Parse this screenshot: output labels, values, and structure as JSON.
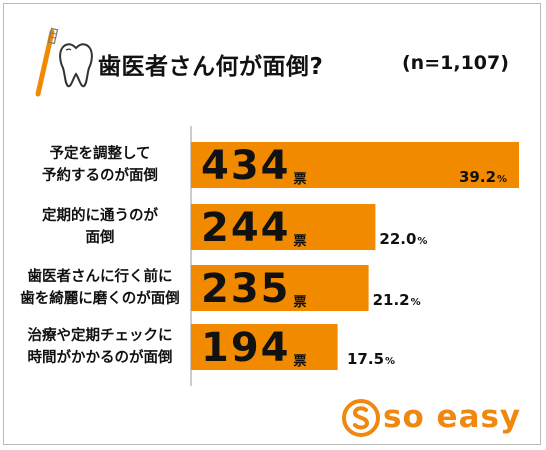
{
  "header": {
    "title": "歯医者さん何が面倒?",
    "sample": "(n=1,107)"
  },
  "colors": {
    "bar": "#f28a00",
    "logo": "#f0870f",
    "axis": "#999999"
  },
  "chart_data": {
    "type": "bar",
    "orientation": "horizontal",
    "title": "歯医者さん何が面倒?",
    "categories": [
      "予定を調整して\n予約するのが面倒",
      "定期的に通うのが\n面倒",
      "歯医者さんに行く前に\n歯を綺麗に磨くのが面倒",
      "治療や定期チェックに\n時間がかかるのが面倒"
    ],
    "values": [
      434,
      244,
      235,
      194
    ],
    "unit": "票",
    "percent_labels": [
      "39.2",
      "22.0",
      "21.2",
      "17.5"
    ],
    "percent_unit": "%"
  },
  "logo": {
    "text": "so easy"
  }
}
